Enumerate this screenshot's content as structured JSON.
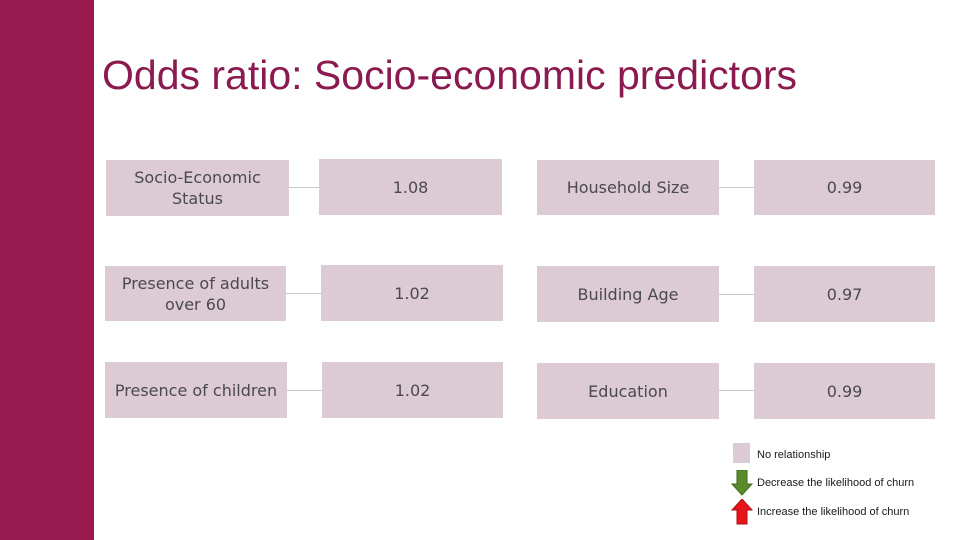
{
  "title": "Odds ratio: Socio-economic predictors",
  "predictors_left": [
    {
      "label": "Socio-Economic Status",
      "value": "1.08"
    },
    {
      "label": "Presence of adults over 60",
      "value": "1.02"
    },
    {
      "label": "Presence of children",
      "value": "1.02"
    }
  ],
  "predictors_right": [
    {
      "label": "Household Size",
      "value": "0.99"
    },
    {
      "label": "Building Age",
      "value": "0.97"
    },
    {
      "label": "Education",
      "value": "0.99"
    }
  ],
  "legend": {
    "no_relationship": "No relationship",
    "decrease": "Decrease the likelihood of churn",
    "increase": "Increase the likelihood of churn",
    "colors": {
      "neutral": "#dccbd4",
      "decrease": "#5a8a2a",
      "increase": "#e8141b"
    }
  },
  "colors": {
    "sidebar": "#981a4f",
    "title": "#8b1a50"
  }
}
